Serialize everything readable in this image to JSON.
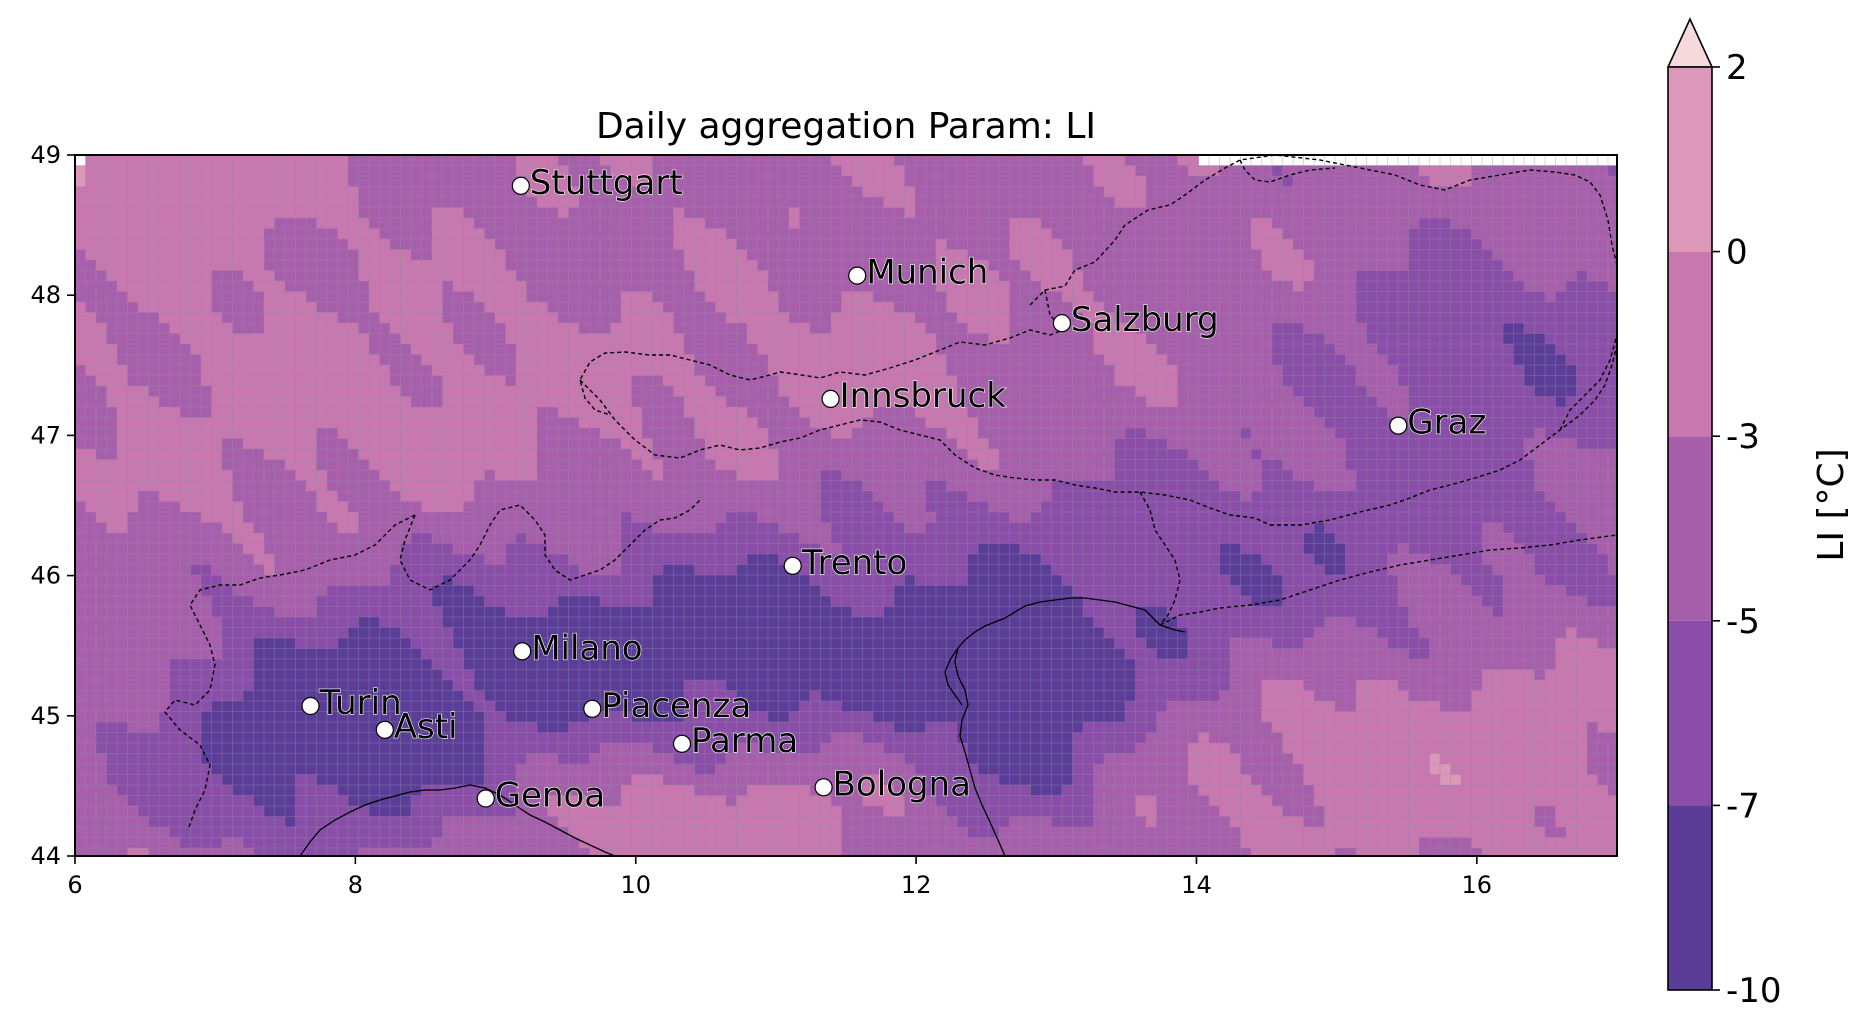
{
  "title": "Daily aggregation Param: LI",
  "map": {
    "lon_ticks": [
      "6",
      "8",
      "10",
      "12",
      "14",
      "16"
    ],
    "lat_ticks": [
      "44",
      "45",
      "46",
      "47",
      "48",
      "49"
    ],
    "xlim": [
      6,
      17
    ],
    "ylim": [
      44,
      49
    ]
  },
  "cities": [
    {
      "name": "Stuttgart",
      "lon": 9.18,
      "lat": 48.78
    },
    {
      "name": "Munich",
      "lon": 11.58,
      "lat": 48.14
    },
    {
      "name": "Salzburg",
      "lon": 13.04,
      "lat": 47.8
    },
    {
      "name": "Innsbruck",
      "lon": 11.39,
      "lat": 47.26
    },
    {
      "name": "Graz",
      "lon": 15.44,
      "lat": 47.07
    },
    {
      "name": "Trento",
      "lon": 11.12,
      "lat": 46.07
    },
    {
      "name": "Milano",
      "lon": 9.19,
      "lat": 45.46
    },
    {
      "name": "Turin",
      "lon": 7.68,
      "lat": 45.07
    },
    {
      "name": "Asti",
      "lon": 8.21,
      "lat": 44.9
    },
    {
      "name": "Piacenza",
      "lon": 9.69,
      "lat": 45.05
    },
    {
      "name": "Parma",
      "lon": 10.33,
      "lat": 44.8
    },
    {
      "name": "Genoa",
      "lon": 8.93,
      "lat": 44.41
    },
    {
      "name": "Bologna",
      "lon": 11.34,
      "lat": 44.49
    }
  ],
  "colorbar": {
    "label": "LI  [°C]",
    "ticks": [
      "2",
      "0",
      "-3",
      "-5",
      "-7",
      "-10"
    ],
    "levels": [
      -10,
      -7,
      -5,
      -3,
      0,
      2
    ],
    "colors": [
      "#5b3d98",
      "#8a4ea8",
      "#a85fab",
      "#c877af",
      "#dc97b9"
    ],
    "extend_max_color": "#f6d9dc"
  },
  "field_colors": {
    "lt_-7": "#5b3d98",
    "-7_-5": "#8a4ea8",
    "-5_-3": "#a85fab",
    "-3_0": "#c877af",
    "0_2": "#dc97b9",
    "grid_line": "#8f8fa8"
  }
}
